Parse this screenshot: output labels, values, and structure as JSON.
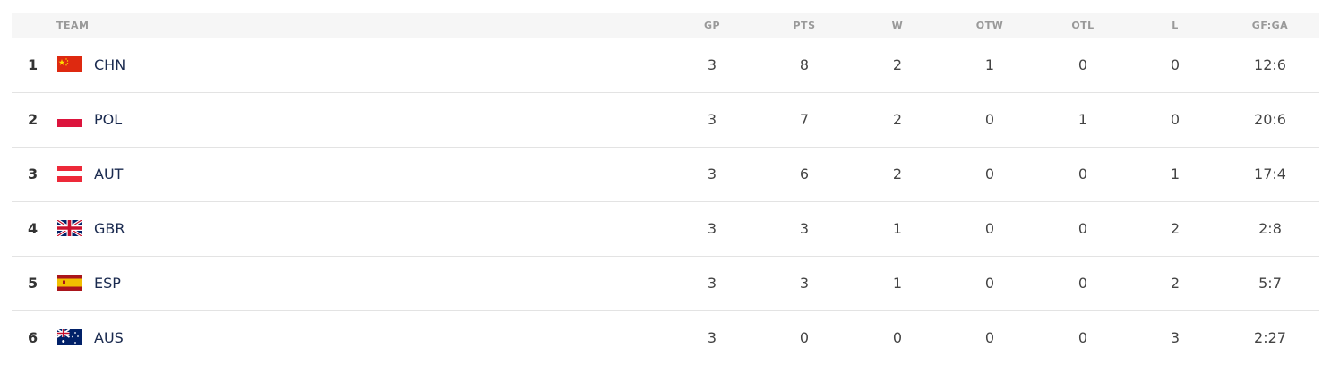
{
  "headers": {
    "team": "TEAM",
    "gp": "GP",
    "pts": "PTS",
    "w": "W",
    "otw": "OTW",
    "otl": "OTL",
    "l": "L",
    "gfga": "GF:GA"
  },
  "rows": [
    {
      "rank": "1",
      "team": "CHN",
      "flag": "china-flag-icon",
      "gp": "3",
      "pts": "8",
      "w": "2",
      "otw": "1",
      "otl": "0",
      "l": "0",
      "gfga": "12:6"
    },
    {
      "rank": "2",
      "team": "POL",
      "flag": "poland-flag-icon",
      "gp": "3",
      "pts": "7",
      "w": "2",
      "otw": "0",
      "otl": "1",
      "l": "0",
      "gfga": "20:6"
    },
    {
      "rank": "3",
      "team": "AUT",
      "flag": "austria-flag-icon",
      "gp": "3",
      "pts": "6",
      "w": "2",
      "otw": "0",
      "otl": "0",
      "l": "1",
      "gfga": "17:4"
    },
    {
      "rank": "4",
      "team": "GBR",
      "flag": "uk-flag-icon",
      "gp": "3",
      "pts": "3",
      "w": "1",
      "otw": "0",
      "otl": "0",
      "l": "2",
      "gfga": "2:8"
    },
    {
      "rank": "5",
      "team": "ESP",
      "flag": "spain-flag-icon",
      "gp": "3",
      "pts": "3",
      "w": "1",
      "otw": "0",
      "otl": "0",
      "l": "2",
      "gfga": "5:7"
    },
    {
      "rank": "6",
      "team": "AUS",
      "flag": "australia-flag-icon",
      "gp": "3",
      "pts": "0",
      "w": "0",
      "otw": "0",
      "otl": "0",
      "l": "3",
      "gfga": "2:27"
    }
  ]
}
